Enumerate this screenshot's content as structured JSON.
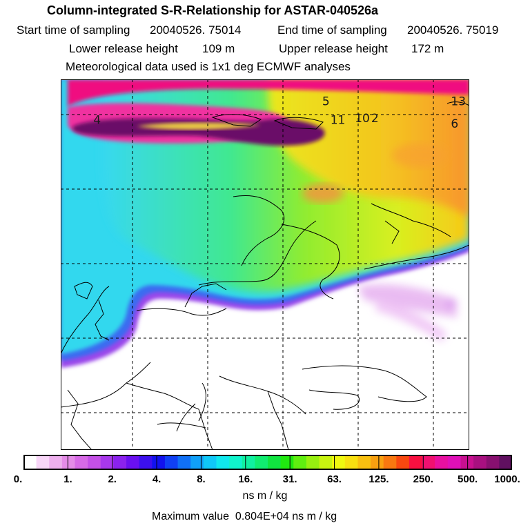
{
  "header": {
    "title": "Column-integrated S-R-Relationship for ASTAR-040526a",
    "start_label": "Start time of sampling",
    "start_value": "20040526. 75014",
    "end_label": "End time of sampling",
    "end_value": "20040526. 75019",
    "lower_label": "Lower release height",
    "lower_value": "109 m",
    "upper_label": "Upper release height",
    "upper_value": "172 m",
    "met_data": "Meteorological data used is 1x1 deg ECMWF analyses"
  },
  "map": {
    "markers": [
      {
        "label": "4",
        "x": 0.08,
        "y": 0.12
      },
      {
        "label": "5",
        "x": 0.64,
        "y": 0.07
      },
      {
        "label": "11",
        "x": 0.66,
        "y": 0.12
      },
      {
        "label": "10",
        "x": 0.72,
        "y": 0.115
      },
      {
        "label": "2",
        "x": 0.76,
        "y": 0.115
      },
      {
        "label": "13",
        "x": 0.955,
        "y": 0.07
      },
      {
        "label": "6",
        "x": 0.955,
        "y": 0.13
      }
    ]
  },
  "colorbar": {
    "tick_labels": [
      "0.",
      "1.",
      "2.",
      "4.",
      "8.",
      "16.",
      "31.",
      "63.",
      "125.",
      "250.",
      "500.",
      "1000."
    ],
    "colors": [
      "#ffffff",
      "#f8d6f8",
      "#eeb0ee",
      "#e58ce8",
      "#d76ae6",
      "#c450e6",
      "#a838ec",
      "#8b22ee",
      "#6a10f0",
      "#3c10ee",
      "#1212ee",
      "#1040f4",
      "#1070f6",
      "#10a0f8",
      "#10c8f8",
      "#10e8ee",
      "#10f4cc",
      "#10f0a0",
      "#10ec70",
      "#10e440",
      "#20e810",
      "#60ee10",
      "#98f010",
      "#c8f410",
      "#f0f810",
      "#f8e010",
      "#f8c010",
      "#f8a010",
      "#f87810",
      "#f84810",
      "#f81040",
      "#f01070",
      "#e810a0",
      "#e010b8",
      "#c81090",
      "#a81080",
      "#881070",
      "#601060"
    ],
    "unit": "ns m / kg"
  },
  "footer": {
    "max_label": "Maximum value",
    "max_value": "0.804E+04 ns m / kg"
  }
}
